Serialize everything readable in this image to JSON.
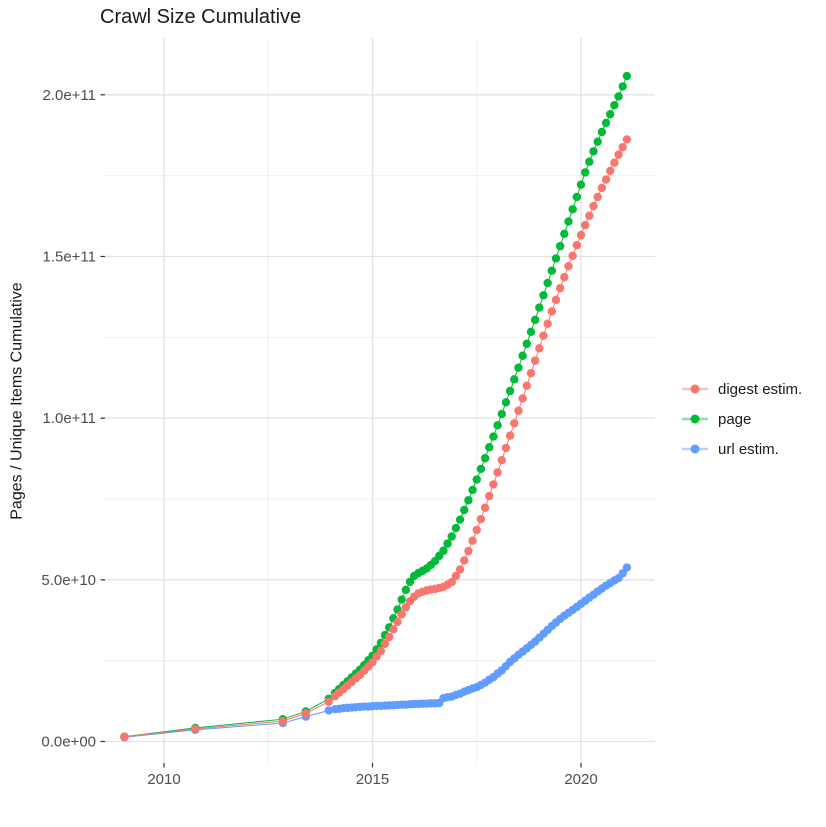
{
  "chart_data": {
    "type": "scatter",
    "title": "Crawl Size Cumulative",
    "xlabel": "",
    "ylabel": "Pages / Unique Items Cumulative",
    "legend_position": "right",
    "grid": true,
    "value_unit": "billions (1e9) of pages / unique items",
    "xlim": [
      2008.6,
      2021.8
    ],
    "ylim": [
      -6600000000.0,
      217600000000.0
    ],
    "x_ticks": [
      {
        "value": 2010,
        "label": "2010"
      },
      {
        "value": 2015,
        "label": "2015"
      },
      {
        "value": 2020,
        "label": "2020"
      }
    ],
    "x_minor_ticks": [
      2012.5,
      2017.5
    ],
    "y_ticks": [
      {
        "value": 0,
        "label": "0.0e+00"
      },
      {
        "value": 50,
        "label": "5.0e+10"
      },
      {
        "value": 100,
        "label": "1.0e+11"
      },
      {
        "value": 150,
        "label": "1.5e+11"
      },
      {
        "value": 200,
        "label": "2.0e+11"
      }
    ],
    "y_minor_ticks": [
      25,
      75,
      125,
      175
    ],
    "x": [
      2009.05,
      2010.75,
      2012.85,
      2013.4,
      2013.95,
      2014.1,
      2014.2,
      2014.3,
      2014.4,
      2014.5,
      2014.6,
      2014.7,
      2014.8,
      2014.9,
      2015.0,
      2015.1,
      2015.2,
      2015.3,
      2015.4,
      2015.5,
      2015.6,
      2015.7,
      2015.8,
      2015.9,
      2016.0,
      2016.1,
      2016.2,
      2016.3,
      2016.4,
      2016.5,
      2016.6,
      2016.7,
      2016.8,
      2016.9,
      2017.0,
      2017.1,
      2017.2,
      2017.3,
      2017.4,
      2017.5,
      2017.6,
      2017.7,
      2017.8,
      2017.9,
      2018.0,
      2018.1,
      2018.2,
      2018.3,
      2018.4,
      2018.5,
      2018.6,
      2018.7,
      2018.8,
      2018.9,
      2019.0,
      2019.1,
      2019.2,
      2019.3,
      2019.4,
      2019.5,
      2019.6,
      2019.7,
      2019.8,
      2019.9,
      2020.0,
      2020.1,
      2020.2,
      2020.3,
      2020.4,
      2020.5,
      2020.6,
      2020.7,
      2020.8,
      2020.9,
      2021.0,
      2021.1
    ],
    "series": [
      {
        "name": "digest estim.",
        "color": "#F8766D",
        "values": [
          1.4,
          3.9,
          6.3,
          8.7,
          12.3,
          14.0,
          15.1,
          16.2,
          17.3,
          18.4,
          19.5,
          20.6,
          21.9,
          23.2,
          24.5,
          26.3,
          28.0,
          30.2,
          32.3,
          34.7,
          37.0,
          39.3,
          41.5,
          43.4,
          44.8,
          45.8,
          46.3,
          46.7,
          47.0,
          47.2,
          47.5,
          47.8,
          48.5,
          49.3,
          51.2,
          53.2,
          56.0,
          58.9,
          62.1,
          65.4,
          68.8,
          72.3,
          75.9,
          79.5,
          83.2,
          87.0,
          90.8,
          94.6,
          98.4,
          102.3,
          106.1,
          110.0,
          113.9,
          117.8,
          121.6,
          125.5,
          129.2,
          133.0,
          136.6,
          140.2,
          143.6,
          147.0,
          150.2,
          153.5,
          156.6,
          159.7,
          162.6,
          165.6,
          168.4,
          171.2,
          173.8,
          176.5,
          179.0,
          181.5,
          183.8,
          186.2
        ]
      },
      {
        "name": "page",
        "color": "#00BA38",
        "values": [
          1.5,
          4.2,
          6.9,
          9.3,
          13.2,
          15.0,
          16.2,
          17.4,
          18.6,
          19.8,
          21.0,
          22.2,
          23.6,
          25.1,
          26.5,
          28.5,
          30.5,
          32.9,
          35.3,
          38.1,
          40.8,
          43.9,
          46.9,
          49.4,
          51.2,
          52.1,
          52.8,
          53.5,
          54.6,
          55.8,
          57.4,
          59.0,
          61.2,
          63.4,
          66.0,
          68.6,
          71.6,
          74.6,
          77.8,
          81.0,
          84.3,
          87.6,
          91.0,
          94.3,
          97.8,
          101.3,
          104.9,
          108.4,
          112.0,
          115.6,
          119.3,
          123.0,
          126.7,
          130.4,
          134.2,
          138.0,
          141.8,
          145.6,
          149.4,
          153.2,
          157.0,
          160.8,
          164.6,
          168.4,
          172.2,
          176.0,
          179.3,
          182.5,
          185.5,
          188.5,
          191.3,
          194.0,
          196.8,
          199.5,
          202.6,
          205.8
        ]
      },
      {
        "name": "url estim.",
        "color": "#619CFF",
        "values": [
          1.3,
          3.6,
          5.7,
          7.7,
          9.6,
          10.0,
          10.1,
          10.3,
          10.4,
          10.5,
          10.6,
          10.7,
          10.8,
          10.8,
          10.9,
          11.0,
          11.0,
          11.1,
          11.2,
          11.2,
          11.3,
          11.4,
          11.4,
          11.5,
          11.6,
          11.6,
          11.7,
          11.7,
          11.8,
          11.8,
          11.9,
          13.4,
          13.7,
          13.9,
          14.4,
          14.8,
          15.4,
          15.9,
          16.4,
          16.8,
          17.5,
          18.2,
          19.1,
          19.9,
          21.0,
          22.0,
          23.3,
          24.6,
          25.7,
          26.8,
          27.8,
          28.8,
          29.9,
          30.9,
          32.1,
          33.3,
          34.5,
          35.7,
          36.8,
          37.9,
          38.9,
          39.8,
          40.7,
          41.6,
          42.6,
          43.5,
          44.5,
          45.4,
          46.4,
          47.3,
          48.2,
          49.0,
          49.8,
          50.5,
          52.0,
          53.8
        ]
      }
    ],
    "style": {
      "major_grid_color": "#e2e2e2",
      "minor_grid_color": "#f0f0f0",
      "axis_text_color": "#4d4d4d",
      "tick_color": "#333333",
      "point_radius": 4.2
    }
  }
}
